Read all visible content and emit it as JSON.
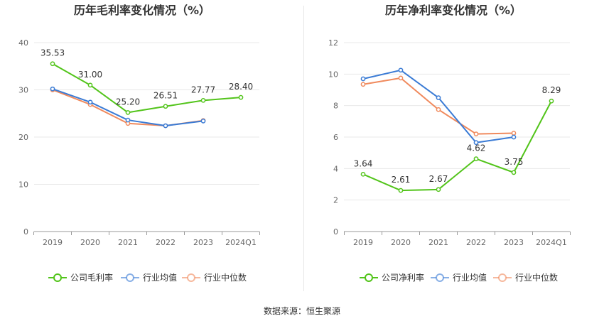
{
  "chart_data": [
    {
      "type": "line",
      "title": "历年毛利率变化情况（%）",
      "categories": [
        "2019",
        "2020",
        "2021",
        "2022",
        "2023",
        "2024Q1"
      ],
      "ylim": [
        0,
        40
      ],
      "yticks": [
        "0",
        "10",
        "20",
        "30",
        "40"
      ],
      "grid": true,
      "legend_position": "bottom",
      "series": [
        {
          "name": "公司毛利率",
          "color": "#52c41a",
          "values": [
            35.53,
            31.0,
            25.2,
            26.51,
            27.77,
            28.4
          ],
          "labels": [
            "35.53",
            "31.00",
            "25.20",
            "26.51",
            "27.77",
            "28.40"
          ]
        },
        {
          "name": "行业均值",
          "color": "#3a7bd5",
          "values": [
            30.2,
            27.4,
            23.6,
            22.4,
            23.4,
            null
          ]
        },
        {
          "name": "行业中位数",
          "color": "#f08a5d",
          "values": [
            30.0,
            26.9,
            22.9,
            22.4,
            23.5,
            null
          ]
        }
      ]
    },
    {
      "type": "line",
      "title": "历年净利率变化情况（%）",
      "categories": [
        "2019",
        "2020",
        "2021",
        "2022",
        "2023",
        "2024Q1"
      ],
      "ylim": [
        0,
        12
      ],
      "yticks": [
        "0",
        "2",
        "4",
        "6",
        "8",
        "10",
        "12"
      ],
      "grid": true,
      "legend_position": "bottom",
      "series": [
        {
          "name": "公司净利率",
          "color": "#52c41a",
          "values": [
            3.64,
            2.61,
            2.67,
            4.62,
            3.75,
            8.29
          ],
          "labels": [
            "3.64",
            "2.61",
            "2.67",
            "4.62",
            "3.75",
            "8.29"
          ]
        },
        {
          "name": "行业均值",
          "color": "#3a7bd5",
          "values": [
            9.7,
            10.25,
            8.5,
            5.65,
            6.0,
            null
          ]
        },
        {
          "name": "行业中位数",
          "color": "#f08a5d",
          "values": [
            9.35,
            9.75,
            7.75,
            6.2,
            6.25,
            null
          ]
        }
      ]
    }
  ],
  "footer": {
    "source": "数据来源：恒生聚源"
  }
}
